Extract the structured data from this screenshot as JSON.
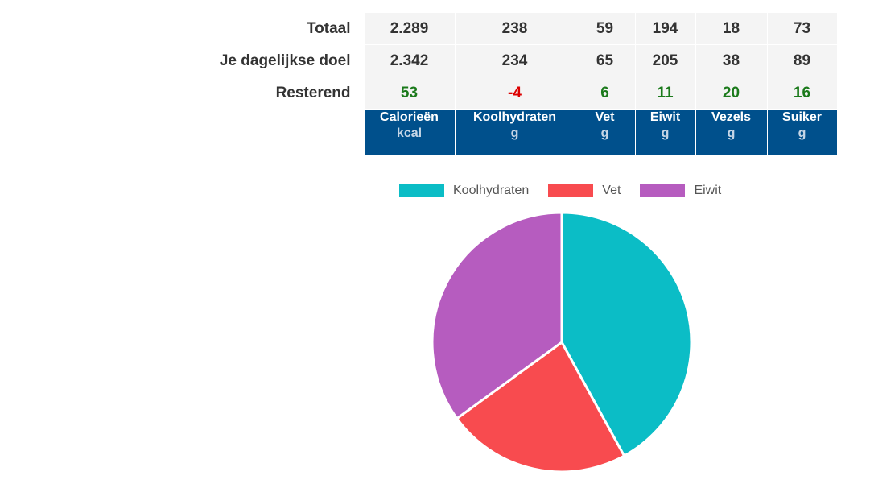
{
  "table": {
    "rows": [
      {
        "label": "Totaal",
        "values": [
          "2.289",
          "238",
          "59",
          "194",
          "18",
          "73"
        ]
      },
      {
        "label": "Je dagelijkse doel",
        "values": [
          "2.342",
          "234",
          "65",
          "205",
          "38",
          "89"
        ]
      },
      {
        "label": "Resterend",
        "values": [
          "53",
          "-4",
          "6",
          "11",
          "20",
          "16"
        ]
      }
    ],
    "headers": [
      {
        "name": "Calorieën",
        "unit": "kcal"
      },
      {
        "name": "Koolhydraten",
        "unit": "g"
      },
      {
        "name": "Vet",
        "unit": "g"
      },
      {
        "name": "Eiwit",
        "unit": "g"
      },
      {
        "name": "Vezels",
        "unit": "g"
      },
      {
        "name": "Suiker",
        "unit": "g"
      }
    ]
  },
  "colors": {
    "header_bg": "#00508c",
    "positive": "#1b7a1b",
    "negative": "#dd0000",
    "koolhydraten": "#0bbdc6",
    "vet": "#f84b4f",
    "eiwit": "#b65cbf"
  },
  "chart_data": {
    "type": "pie",
    "categories": [
      "Koolhydraten",
      "Vet",
      "Eiwit"
    ],
    "values": [
      42,
      23,
      35
    ],
    "colors": [
      "#0bbdc6",
      "#f84b4f",
      "#b65cbf"
    ],
    "legend_position": "top"
  }
}
